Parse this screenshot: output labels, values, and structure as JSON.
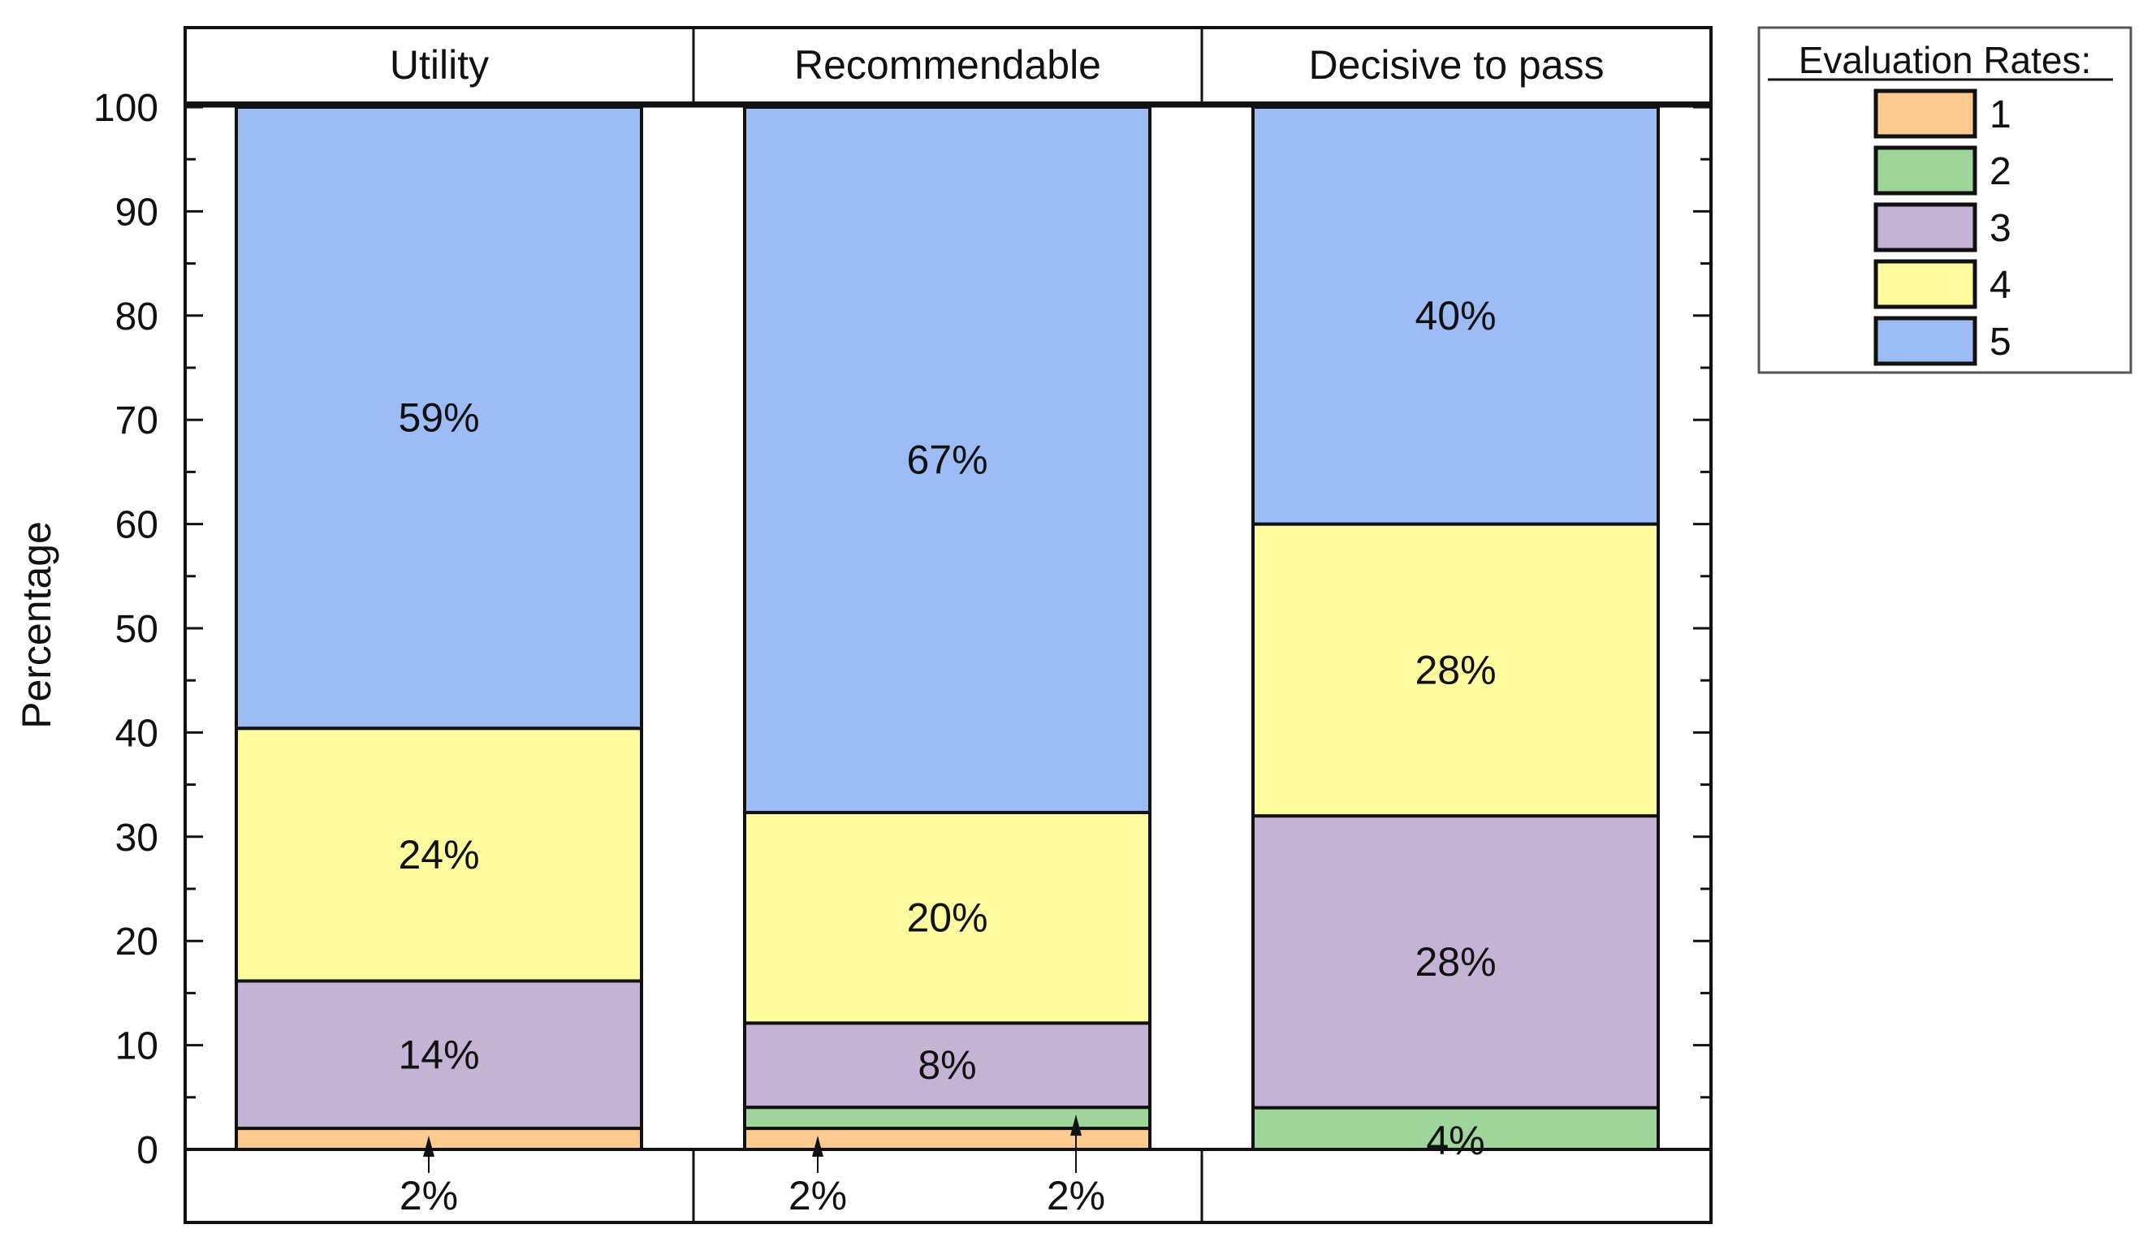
{
  "chart_data": {
    "type": "bar",
    "stacked": true,
    "ylabel": "Percentage",
    "xlabel": "",
    "ylim": [
      0,
      100
    ],
    "yticks": [
      0,
      10,
      20,
      30,
      40,
      50,
      60,
      70,
      80,
      90,
      100
    ],
    "grid": false,
    "legend": {
      "title": "Evaluation Rates:",
      "placement": "right-top",
      "entries": [
        "1",
        "2",
        "3",
        "4",
        "5"
      ]
    },
    "colors": [
      "#fdcb8f",
      "#9ed59b",
      "#c5b3d6",
      "#fefc9f",
      "#9dbbf4"
    ],
    "panels": [
      "Utility",
      "Recommendable",
      "Decisive to pass"
    ],
    "series": [
      {
        "name": "1",
        "values": [
          2,
          2,
          0
        ]
      },
      {
        "name": "2",
        "values": [
          0,
          2,
          4
        ]
      },
      {
        "name": "3",
        "values": [
          14,
          8,
          28
        ]
      },
      {
        "name": "4",
        "values": [
          24,
          20,
          28
        ]
      },
      {
        "name": "5",
        "values": [
          59,
          67,
          40
        ]
      }
    ],
    "data_labels": [
      [
        "2%",
        "",
        "14%",
        "24%",
        "59%"
      ],
      [
        "2%",
        "2%",
        "8%",
        "20%",
        "67%"
      ],
      [
        "",
        "4%",
        "28%",
        "28%",
        "40%"
      ]
    ]
  }
}
